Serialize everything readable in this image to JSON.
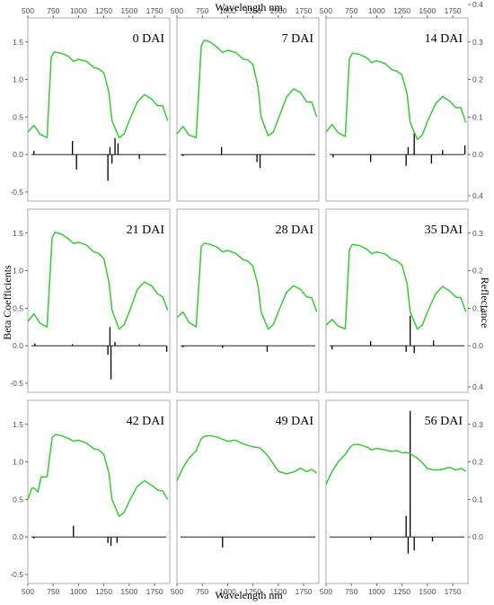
{
  "figure": {
    "top_xlabel": "Wavelength nm",
    "bottom_xlabel": "Wavelength nm",
    "left_ylabel": "Beta Coefficients",
    "right_ylabel": "Reflectance"
  },
  "colors": {
    "reflectance": "#33cc33",
    "beta": "#000000",
    "frame": "#999999"
  },
  "chart_data": {
    "type": "line",
    "layout": "3x3 small multiples",
    "x_axis": {
      "label": "Wavelength nm",
      "range": [
        500,
        1900
      ],
      "ticks": [
        500,
        750,
        1000,
        1250,
        1500,
        1750
      ]
    },
    "left_axis": {
      "label": "Beta Coefficients",
      "range": [
        -0.62,
        1.82
      ],
      "ticks": [
        -0.5,
        0.0,
        0.5,
        1.0,
        1.5
      ]
    },
    "right_axis": {
      "label": "Reflectance",
      "range": [
        -0.124,
        0.364
      ],
      "ticks": [
        0.0,
        0.1,
        0.2,
        0.3,
        0.4
      ]
    },
    "grid": false,
    "panels": [
      {
        "label": "0 DAI",
        "reflectance": [
          [
            500,
            0.06
          ],
          [
            560,
            0.078
          ],
          [
            620,
            0.054
          ],
          [
            690,
            0.045
          ],
          [
            730,
            0.26
          ],
          [
            760,
            0.273
          ],
          [
            830,
            0.27
          ],
          [
            900,
            0.262
          ],
          [
            950,
            0.248
          ],
          [
            1000,
            0.254
          ],
          [
            1080,
            0.248
          ],
          [
            1150,
            0.232
          ],
          [
            1200,
            0.228
          ],
          [
            1250,
            0.218
          ],
          [
            1300,
            0.165
          ],
          [
            1330,
            0.09
          ],
          [
            1400,
            0.045
          ],
          [
            1450,
            0.055
          ],
          [
            1500,
            0.09
          ],
          [
            1580,
            0.14
          ],
          [
            1650,
            0.16
          ],
          [
            1720,
            0.148
          ],
          [
            1780,
            0.13
          ],
          [
            1830,
            0.13
          ],
          [
            1880,
            0.09
          ]
        ],
        "beta": [
          [
            560,
            0.05
          ],
          [
            940,
            0.18
          ],
          [
            980,
            -0.2
          ],
          [
            1290,
            -0.35
          ],
          [
            1310,
            0.1
          ],
          [
            1330,
            -0.12
          ],
          [
            1360,
            0.22
          ],
          [
            1390,
            0.15
          ],
          [
            1600,
            -0.06
          ]
        ]
      },
      {
        "label": "7 DAI",
        "reflectance": [
          [
            500,
            0.055
          ],
          [
            560,
            0.075
          ],
          [
            620,
            0.052
          ],
          [
            690,
            0.045
          ],
          [
            740,
            0.29
          ],
          [
            770,
            0.305
          ],
          [
            830,
            0.3
          ],
          [
            900,
            0.285
          ],
          [
            950,
            0.272
          ],
          [
            1000,
            0.278
          ],
          [
            1080,
            0.272
          ],
          [
            1150,
            0.255
          ],
          [
            1200,
            0.252
          ],
          [
            1250,
            0.24
          ],
          [
            1300,
            0.18
          ],
          [
            1330,
            0.1
          ],
          [
            1400,
            0.05
          ],
          [
            1450,
            0.06
          ],
          [
            1500,
            0.095
          ],
          [
            1580,
            0.152
          ],
          [
            1650,
            0.175
          ],
          [
            1720,
            0.165
          ],
          [
            1780,
            0.14
          ],
          [
            1830,
            0.14
          ],
          [
            1880,
            0.1
          ]
        ],
        "beta": [
          [
            560,
            -0.02
          ],
          [
            940,
            0.1
          ],
          [
            1290,
            -0.1
          ],
          [
            1320,
            -0.18
          ]
        ]
      },
      {
        "label": "14 DAI",
        "reflectance": [
          [
            500,
            0.06
          ],
          [
            560,
            0.08
          ],
          [
            620,
            0.058
          ],
          [
            690,
            0.048
          ],
          [
            730,
            0.255
          ],
          [
            760,
            0.27
          ],
          [
            830,
            0.267
          ],
          [
            900,
            0.258
          ],
          [
            950,
            0.245
          ],
          [
            1000,
            0.25
          ],
          [
            1080,
            0.243
          ],
          [
            1150,
            0.226
          ],
          [
            1200,
            0.222
          ],
          [
            1250,
            0.212
          ],
          [
            1300,
            0.16
          ],
          [
            1330,
            0.085
          ],
          [
            1400,
            0.04
          ],
          [
            1450,
            0.052
          ],
          [
            1500,
            0.088
          ],
          [
            1580,
            0.135
          ],
          [
            1650,
            0.155
          ],
          [
            1720,
            0.142
          ],
          [
            1780,
            0.125
          ],
          [
            1830,
            0.125
          ],
          [
            1880,
            0.085
          ]
        ],
        "beta": [
          [
            570,
            -0.04
          ],
          [
            940,
            -0.1
          ],
          [
            1290,
            -0.15
          ],
          [
            1310,
            0.1
          ],
          [
            1370,
            0.3
          ],
          [
            1540,
            -0.12
          ],
          [
            1650,
            0.06
          ],
          [
            1870,
            0.12
          ]
        ]
      },
      {
        "label": "21 DAI",
        "reflectance": [
          [
            500,
            0.065
          ],
          [
            560,
            0.085
          ],
          [
            620,
            0.06
          ],
          [
            690,
            0.05
          ],
          [
            740,
            0.29
          ],
          [
            770,
            0.302
          ],
          [
            830,
            0.298
          ],
          [
            900,
            0.285
          ],
          [
            950,
            0.272
          ],
          [
            1000,
            0.276
          ],
          [
            1080,
            0.268
          ],
          [
            1150,
            0.25
          ],
          [
            1200,
            0.246
          ],
          [
            1250,
            0.232
          ],
          [
            1300,
            0.17
          ],
          [
            1330,
            0.095
          ],
          [
            1400,
            0.045
          ],
          [
            1450,
            0.056
          ],
          [
            1500,
            0.09
          ],
          [
            1580,
            0.15
          ],
          [
            1650,
            0.17
          ],
          [
            1720,
            0.16
          ],
          [
            1780,
            0.138
          ],
          [
            1830,
            0.13
          ],
          [
            1880,
            0.095
          ]
        ],
        "beta": [
          [
            570,
            0.03
          ],
          [
            940,
            0.02
          ],
          [
            1290,
            -0.12
          ],
          [
            1310,
            0.25
          ],
          [
            1320,
            -0.45
          ],
          [
            1360,
            0.05
          ],
          [
            1600,
            0.02
          ],
          [
            1870,
            -0.08
          ]
        ]
      },
      {
        "label": "28 DAI",
        "reflectance": [
          [
            500,
            0.075
          ],
          [
            560,
            0.09
          ],
          [
            620,
            0.062
          ],
          [
            690,
            0.05
          ],
          [
            740,
            0.265
          ],
          [
            770,
            0.273
          ],
          [
            830,
            0.27
          ],
          [
            900,
            0.262
          ],
          [
            950,
            0.25
          ],
          [
            1000,
            0.254
          ],
          [
            1080,
            0.246
          ],
          [
            1150,
            0.23
          ],
          [
            1200,
            0.225
          ],
          [
            1250,
            0.212
          ],
          [
            1300,
            0.16
          ],
          [
            1330,
            0.09
          ],
          [
            1400,
            0.045
          ],
          [
            1450,
            0.056
          ],
          [
            1500,
            0.09
          ],
          [
            1580,
            0.142
          ],
          [
            1650,
            0.16
          ],
          [
            1720,
            0.15
          ],
          [
            1780,
            0.13
          ],
          [
            1830,
            0.128
          ],
          [
            1880,
            0.09
          ]
        ],
        "beta": [
          [
            560,
            -0.02
          ],
          [
            950,
            -0.03
          ],
          [
            1390,
            -0.08
          ]
        ]
      },
      {
        "label": "35 DAI",
        "reflectance": [
          [
            500,
            0.055
          ],
          [
            560,
            0.07
          ],
          [
            620,
            0.052
          ],
          [
            690,
            0.045
          ],
          [
            730,
            0.255
          ],
          [
            760,
            0.27
          ],
          [
            830,
            0.267
          ],
          [
            900,
            0.258
          ],
          [
            950,
            0.245
          ],
          [
            1000,
            0.25
          ],
          [
            1080,
            0.245
          ],
          [
            1150,
            0.23
          ],
          [
            1200,
            0.226
          ],
          [
            1250,
            0.215
          ],
          [
            1300,
            0.165
          ],
          [
            1330,
            0.09
          ],
          [
            1400,
            0.045
          ],
          [
            1450,
            0.055
          ],
          [
            1500,
            0.09
          ],
          [
            1580,
            0.138
          ],
          [
            1650,
            0.158
          ],
          [
            1720,
            0.146
          ],
          [
            1780,
            0.13
          ],
          [
            1830,
            0.128
          ],
          [
            1880,
            0.09
          ]
        ],
        "beta": [
          [
            560,
            -0.05
          ],
          [
            940,
            0.06
          ],
          [
            1290,
            -0.08
          ],
          [
            1330,
            0.4
          ],
          [
            1370,
            -0.1
          ],
          [
            1560,
            0.07
          ]
        ]
      },
      {
        "label": "42 DAI",
        "reflectance": [
          [
            500,
            0.1
          ],
          [
            540,
            0.13
          ],
          [
            560,
            0.13
          ],
          [
            600,
            0.12
          ],
          [
            630,
            0.16
          ],
          [
            690,
            0.16
          ],
          [
            740,
            0.265
          ],
          [
            770,
            0.273
          ],
          [
            830,
            0.27
          ],
          [
            900,
            0.262
          ],
          [
            950,
            0.255
          ],
          [
            1000,
            0.258
          ],
          [
            1080,
            0.25
          ],
          [
            1150,
            0.235
          ],
          [
            1200,
            0.232
          ],
          [
            1250,
            0.22
          ],
          [
            1300,
            0.17
          ],
          [
            1330,
            0.1
          ],
          [
            1400,
            0.055
          ],
          [
            1450,
            0.065
          ],
          [
            1500,
            0.095
          ],
          [
            1580,
            0.135
          ],
          [
            1650,
            0.15
          ],
          [
            1720,
            0.138
          ],
          [
            1780,
            0.125
          ],
          [
            1830,
            0.122
          ],
          [
            1880,
            0.1
          ]
        ],
        "beta": [
          [
            560,
            -0.02
          ],
          [
            950,
            0.15
          ],
          [
            1290,
            -0.08
          ],
          [
            1320,
            -0.12
          ],
          [
            1380,
            -0.08
          ]
        ]
      },
      {
        "label": "49 DAI",
        "reflectance": [
          [
            500,
            0.15
          ],
          [
            560,
            0.185
          ],
          [
            620,
            0.21
          ],
          [
            690,
            0.23
          ],
          [
            740,
            0.262
          ],
          [
            770,
            0.268
          ],
          [
            830,
            0.27
          ],
          [
            900,
            0.266
          ],
          [
            950,
            0.26
          ],
          [
            1000,
            0.255
          ],
          [
            1080,
            0.258
          ],
          [
            1150,
            0.248
          ],
          [
            1200,
            0.244
          ],
          [
            1250,
            0.24
          ],
          [
            1300,
            0.238
          ],
          [
            1330,
            0.235
          ],
          [
            1400,
            0.215
          ],
          [
            1450,
            0.195
          ],
          [
            1500,
            0.175
          ],
          [
            1580,
            0.168
          ],
          [
            1650,
            0.173
          ],
          [
            1720,
            0.183
          ],
          [
            1780,
            0.174
          ],
          [
            1830,
            0.18
          ],
          [
            1880,
            0.17
          ]
        ],
        "beta": [
          [
            950,
            -0.14
          ]
        ]
      },
      {
        "label": "56 DAI",
        "reflectance": [
          [
            500,
            0.14
          ],
          [
            560,
            0.175
          ],
          [
            620,
            0.2
          ],
          [
            690,
            0.22
          ],
          [
            740,
            0.24
          ],
          [
            770,
            0.246
          ],
          [
            830,
            0.246
          ],
          [
            900,
            0.24
          ],
          [
            950,
            0.232
          ],
          [
            1000,
            0.236
          ],
          [
            1080,
            0.232
          ],
          [
            1150,
            0.228
          ],
          [
            1200,
            0.23
          ],
          [
            1250,
            0.224
          ],
          [
            1300,
            0.225
          ],
          [
            1330,
            0.222
          ],
          [
            1400,
            0.21
          ],
          [
            1450,
            0.198
          ],
          [
            1500,
            0.182
          ],
          [
            1580,
            0.178
          ],
          [
            1650,
            0.18
          ],
          [
            1720,
            0.186
          ],
          [
            1780,
            0.178
          ],
          [
            1830,
            0.183
          ],
          [
            1880,
            0.175
          ]
        ],
        "beta": [
          [
            940,
            -0.04
          ],
          [
            1290,
            0.28
          ],
          [
            1310,
            -0.22
          ],
          [
            1330,
            1.68
          ],
          [
            1370,
            -0.18
          ],
          [
            1550,
            -0.06
          ]
        ]
      }
    ]
  }
}
